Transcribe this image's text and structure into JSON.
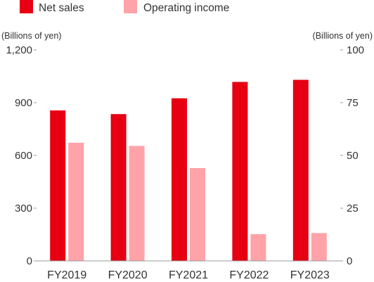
{
  "chart_data": {
    "type": "bar",
    "categories": [
      "FY2019",
      "FY2020",
      "FY2021",
      "FY2022",
      "FY2023"
    ],
    "series": [
      {
        "name": "Net sales",
        "axis": "left",
        "color": "#e60012",
        "values": [
          856,
          835,
          925,
          1018,
          1030
        ]
      },
      {
        "name": "Operating income",
        "axis": "right",
        "color": "#ffa3a8",
        "values": [
          56,
          54.5,
          44,
          12.7,
          13.2
        ]
      }
    ],
    "ylabel_left": "(Billions of yen)",
    "ylabel_right": "(Billions of yen)",
    "ylim_left": [
      0,
      1200
    ],
    "ylim_right": [
      0,
      100
    ],
    "yticks_left": [
      "0",
      "300",
      "600",
      "900",
      "1,200"
    ],
    "yticks_right": [
      "0",
      "25",
      "50",
      "75",
      "100"
    ],
    "grid": false,
    "legend_position": "top-left"
  }
}
